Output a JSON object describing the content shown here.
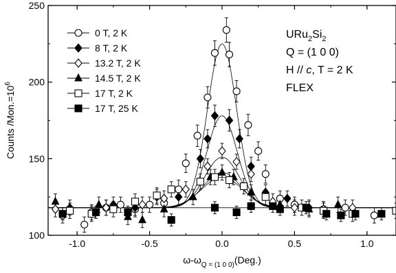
{
  "chart_data": {
    "type": "scatter",
    "xlim": [
      -1.2,
      1.2
    ],
    "ylim": [
      100,
      250
    ],
    "xticks": [
      -1.0,
      -0.5,
      0.0,
      0.5,
      1.0
    ],
    "xtick_labels": [
      "-1.0",
      "-0.5",
      "0.0",
      "0.5",
      "1.0"
    ],
    "yticks": [
      100,
      150,
      200,
      250
    ],
    "ytick_labels": [
      "100",
      "150",
      "200",
      "250"
    ],
    "xlabel": {
      "main": "ω-ω",
      "sub": "Q = (1 0 0)",
      "suffix": "(Deg.)"
    },
    "ylabel": {
      "main": "Counts /Mon.=10",
      "sup": "6"
    },
    "legend_position": "top-left",
    "annotations": [
      {
        "parts": [
          {
            "t": "URu"
          },
          {
            "t": "2",
            "sub": true
          },
          {
            "t": "Si"
          },
          {
            "t": "2",
            "sub": true
          }
        ]
      },
      {
        "parts": [
          {
            "t": "Q = (1 0 0)"
          }
        ]
      },
      {
        "parts": [
          {
            "t": "H // "
          },
          {
            "t": "c",
            "italic": true
          },
          {
            "t": ", T = 2 K"
          }
        ]
      },
      {
        "parts": [
          {
            "t": "FLEX"
          }
        ]
      }
    ],
    "baseline_y": 118,
    "series": [
      {
        "name": "0 T, 2 K",
        "marker": "circle-open",
        "fit": {
          "amp": 107,
          "sigma": 0.1,
          "center": 0.0
        },
        "points": [
          {
            "x": -1.1,
            "y": 113,
            "err": 5
          },
          {
            "x": -0.95,
            "y": 107,
            "err": 5
          },
          {
            "x": -0.9,
            "y": 115,
            "err": 5
          },
          {
            "x": -0.8,
            "y": 118,
            "err": 5
          },
          {
            "x": -0.7,
            "y": 120,
            "err": 5
          },
          {
            "x": -0.6,
            "y": 117,
            "err": 5
          },
          {
            "x": -0.5,
            "y": 120,
            "err": 5
          },
          {
            "x": -0.4,
            "y": 121,
            "err": 5
          },
          {
            "x": -0.3,
            "y": 130,
            "err": 6
          },
          {
            "x": -0.25,
            "y": 147,
            "err": 6
          },
          {
            "x": -0.17,
            "y": 165,
            "err": 7
          },
          {
            "x": -0.1,
            "y": 190,
            "err": 7
          },
          {
            "x": -0.05,
            "y": 219,
            "err": 8
          },
          {
            "x": 0.03,
            "y": 234,
            "err": 8
          },
          {
            "x": 0.05,
            "y": 218,
            "err": 8
          },
          {
            "x": 0.1,
            "y": 194,
            "err": 7
          },
          {
            "x": 0.18,
            "y": 172,
            "err": 7
          },
          {
            "x": 0.25,
            "y": 155,
            "err": 6
          },
          {
            "x": 0.3,
            "y": 140,
            "err": 6
          },
          {
            "x": 0.4,
            "y": 124,
            "err": 5
          },
          {
            "x": 0.5,
            "y": 120,
            "err": 5
          },
          {
            "x": 0.7,
            "y": 117,
            "err": 5
          },
          {
            "x": 0.85,
            "y": 118,
            "err": 5
          },
          {
            "x": 1.05,
            "y": 113,
            "err": 5
          }
        ]
      },
      {
        "name": "8 T, 2 K",
        "marker": "diamond-filled",
        "fit": {
          "amp": 60,
          "sigma": 0.105,
          "center": 0.0
        },
        "points": [
          {
            "x": -1.05,
            "y": 118,
            "err": 5
          },
          {
            "x": -0.75,
            "y": 120,
            "err": 5
          },
          {
            "x": -0.6,
            "y": 118,
            "err": 5
          },
          {
            "x": -0.45,
            "y": 125,
            "err": 5
          },
          {
            "x": -0.3,
            "y": 125,
            "err": 5
          },
          {
            "x": -0.15,
            "y": 150,
            "err": 6
          },
          {
            "x": -0.1,
            "y": 163,
            "err": 6
          },
          {
            "x": -0.05,
            "y": 178,
            "err": 7
          },
          {
            "x": 0.05,
            "y": 175,
            "err": 7
          },
          {
            "x": 0.12,
            "y": 163,
            "err": 6
          },
          {
            "x": 0.2,
            "y": 145,
            "err": 6
          },
          {
            "x": 0.3,
            "y": 128,
            "err": 5
          },
          {
            "x": 0.45,
            "y": 124,
            "err": 5
          },
          {
            "x": 0.6,
            "y": 118,
            "err": 5
          }
        ]
      },
      {
        "name": "13.2 T, 2 K",
        "marker": "diamond-open",
        "fit": {
          "amp": 33,
          "sigma": 0.12,
          "center": 0.0
        },
        "points": [
          {
            "x": -1.15,
            "y": 117,
            "err": 5
          },
          {
            "x": -0.8,
            "y": 118,
            "err": 5
          },
          {
            "x": -0.55,
            "y": 120,
            "err": 5
          },
          {
            "x": -0.4,
            "y": 124,
            "err": 5
          },
          {
            "x": -0.25,
            "y": 130,
            "err": 5
          },
          {
            "x": -0.1,
            "y": 145,
            "err": 5
          },
          {
            "x": 0.0,
            "y": 155,
            "err": 5
          },
          {
            "x": 0.1,
            "y": 148,
            "err": 5
          },
          {
            "x": 0.2,
            "y": 140,
            "err": 5
          },
          {
            "x": 0.35,
            "y": 122,
            "err": 5
          },
          {
            "x": 0.5,
            "y": 118,
            "err": 5
          },
          {
            "x": 0.7,
            "y": 117,
            "err": 5
          },
          {
            "x": 0.9,
            "y": 118,
            "err": 5
          }
        ]
      },
      {
        "name": "14.5 T, 2 K",
        "marker": "triangle-filled",
        "fit": {
          "amp": 23,
          "sigma": 0.13,
          "center": 0.0
        },
        "points": [
          {
            "x": -1.15,
            "y": 122,
            "err": 5
          },
          {
            "x": -0.85,
            "y": 120,
            "err": 5
          },
          {
            "x": -0.65,
            "y": 112,
            "err": 5
          },
          {
            "x": -0.55,
            "y": 110,
            "err": 5
          },
          {
            "x": -0.4,
            "y": 117,
            "err": 5
          },
          {
            "x": -0.2,
            "y": 125,
            "err": 5
          },
          {
            "x": -0.08,
            "y": 138,
            "err": 5
          },
          {
            "x": 0.0,
            "y": 141,
            "err": 5
          },
          {
            "x": 0.08,
            "y": 138,
            "err": 5
          },
          {
            "x": 0.2,
            "y": 128,
            "err": 5
          },
          {
            "x": 0.4,
            "y": 120,
            "err": 5
          },
          {
            "x": 0.6,
            "y": 117,
            "err": 5
          },
          {
            "x": 0.8,
            "y": 120,
            "err": 5
          }
        ]
      },
      {
        "name": "17 T, 2 K",
        "marker": "square-open",
        "fit": {
          "amp": 20,
          "sigma": 0.14,
          "center": 0.0
        },
        "points": [
          {
            "x": -1.05,
            "y": 116,
            "err": 5
          },
          {
            "x": -0.9,
            "y": 114,
            "err": 5
          },
          {
            "x": -0.75,
            "y": 117,
            "err": 5
          },
          {
            "x": -0.6,
            "y": 122,
            "err": 5
          },
          {
            "x": -0.45,
            "y": 126,
            "err": 5
          },
          {
            "x": -0.35,
            "y": 130,
            "err": 5
          },
          {
            "x": -0.15,
            "y": 135,
            "err": 5
          },
          {
            "x": -0.05,
            "y": 138,
            "err": 5
          },
          {
            "x": 0.05,
            "y": 136,
            "err": 5
          },
          {
            "x": 0.15,
            "y": 132,
            "err": 5
          },
          {
            "x": 0.3,
            "y": 125,
            "err": 5
          },
          {
            "x": 0.55,
            "y": 118,
            "err": 5
          },
          {
            "x": 0.7,
            "y": 116,
            "err": 5
          },
          {
            "x": 0.9,
            "y": 114,
            "err": 5
          },
          {
            "x": 1.2,
            "y": 116,
            "err": 5
          }
        ]
      },
      {
        "name": "17 T, 25 K",
        "marker": "square-filled",
        "fit": {
          "amp": 0,
          "sigma": 0.14,
          "center": 0.0
        },
        "points": [
          {
            "x": -1.1,
            "y": 114,
            "err": 4
          },
          {
            "x": -0.87,
            "y": 115,
            "err": 4
          },
          {
            "x": -0.65,
            "y": 115,
            "err": 4
          },
          {
            "x": -0.35,
            "y": 110,
            "err": 4
          },
          {
            "x": -0.05,
            "y": 118,
            "err": 4
          },
          {
            "x": 0.1,
            "y": 115,
            "err": 4
          },
          {
            "x": 0.2,
            "y": 119,
            "err": 4
          },
          {
            "x": 0.35,
            "y": 119,
            "err": 4
          },
          {
            "x": 0.4,
            "y": 117,
            "err": 4
          },
          {
            "x": 0.58,
            "y": 118,
            "err": 4
          },
          {
            "x": 0.72,
            "y": 114,
            "err": 4
          },
          {
            "x": 0.82,
            "y": 113,
            "err": 4
          },
          {
            "x": 0.92,
            "y": 114,
            "err": 4
          },
          {
            "x": 1.1,
            "y": 114,
            "err": 4
          }
        ]
      }
    ]
  }
}
